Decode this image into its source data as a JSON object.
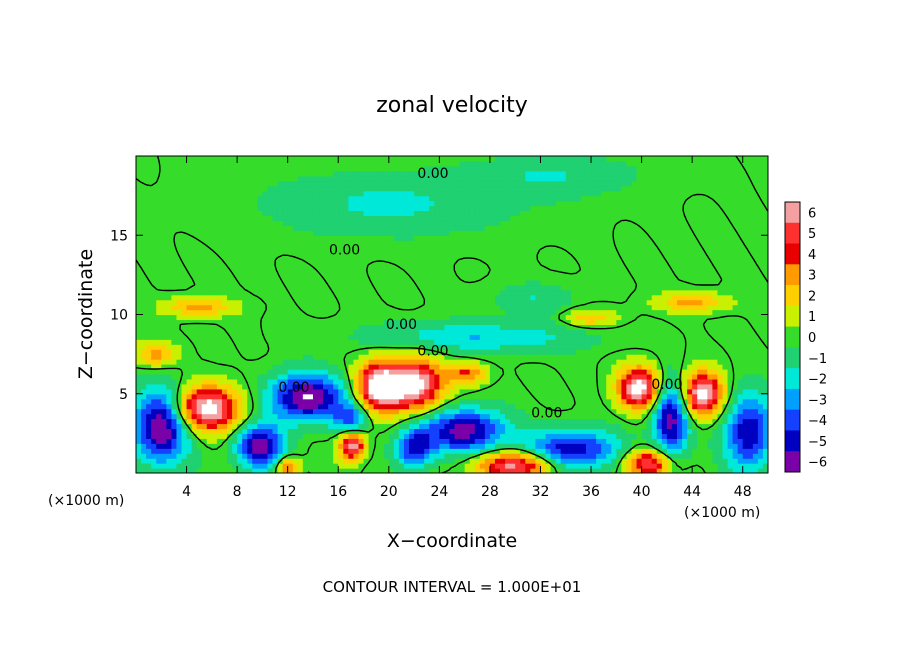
{
  "chart_data": {
    "type": "heatmap",
    "title": "zonal velocity",
    "xlabel": "X−coordinate",
    "ylabel": "Z−coordinate",
    "x_unit_left": "(×1000 m)",
    "x_unit_right": "(×1000 m)",
    "footer": "CONTOUR INTERVAL = 1.000E+01",
    "xlim": [
      0,
      50
    ],
    "ylim": [
      0,
      20
    ],
    "x_ticks": [
      4,
      8,
      12,
      16,
      20,
      24,
      28,
      32,
      36,
      40,
      44,
      48
    ],
    "x_tick_labels": [
      "4",
      "8",
      "12",
      "16",
      "20",
      "24",
      "28",
      "32",
      "36",
      "40",
      "44",
      "48"
    ],
    "y_ticks": [
      5,
      10,
      15
    ],
    "y_tick_labels": [
      "5",
      "10",
      "15"
    ],
    "colorbar": {
      "levels": [
        6,
        5,
        4,
        3,
        2,
        1,
        0,
        -1,
        -2,
        -3,
        -4,
        -5,
        -6
      ],
      "labels": [
        "6",
        "5",
        "4",
        "3",
        "2",
        "1",
        "0",
        "−1",
        "−2",
        "−3",
        "−4",
        "−5",
        "−6"
      ],
      "colors": [
        "#f4a0a0",
        "#ff3030",
        "#e80000",
        "#ff9a00",
        "#ffd000",
        "#c8f000",
        "#36dc2a",
        "#1fd170",
        "#00e8d8",
        "#00a0ff",
        "#1440ff",
        "#0000c0",
        "#7a00a8"
      ]
    },
    "contour_label": "0.00",
    "contour_labels": [
      {
        "x": 23.5,
        "z": 18.6,
        "text": "0.00"
      },
      {
        "x": 16.5,
        "z": 13.8,
        "text": "0.00"
      },
      {
        "x": 21.0,
        "z": 9.1,
        "text": "0.00"
      },
      {
        "x": 23.5,
        "z": 7.4,
        "text": "0.00"
      },
      {
        "x": 12.5,
        "z": 5.1,
        "text": "0.00"
      },
      {
        "x": 32.5,
        "z": 3.5,
        "text": "0.00"
      },
      {
        "x": 42.0,
        "z": 5.3,
        "text": "0.00"
      }
    ],
    "features": [
      {
        "x": 5.6,
        "z": 4.1,
        "v": 6.0,
        "rx": 2.5,
        "rz": 1.3
      },
      {
        "x": 19.2,
        "z": 5.5,
        "v": 6.0,
        "rx": 1.6,
        "rz": 1.4
      },
      {
        "x": 22.0,
        "z": 5.6,
        "v": 6.0,
        "rx": 2.1,
        "rz": 1.5
      },
      {
        "x": 39.8,
        "z": 5.4,
        "v": 6.0,
        "rx": 1.5,
        "rz": 1.2
      },
      {
        "x": 44.8,
        "z": 5.0,
        "v": 6.0,
        "rx": 1.5,
        "rz": 1.3
      },
      {
        "x": 17.1,
        "z": 1.7,
        "v": 5.5,
        "rx": 0.9,
        "rz": 0.8
      },
      {
        "x": 30.0,
        "z": 0.5,
        "v": 5.0,
        "rx": 3.0,
        "rz": 0.8
      },
      {
        "x": 40.5,
        "z": 0.6,
        "v": 5.0,
        "rx": 1.6,
        "rz": 0.8
      },
      {
        "x": 26.2,
        "z": 6.3,
        "v": 3.0,
        "rx": 1.4,
        "rz": 0.6
      },
      {
        "x": 12.0,
        "z": 0.4,
        "v": 4.0,
        "rx": 0.8,
        "rz": 0.6
      },
      {
        "x": 2.0,
        "z": 3.0,
        "v": -5.5,
        "rx": 2.0,
        "rz": 2.2
      },
      {
        "x": 13.5,
        "z": 4.8,
        "v": -5.5,
        "rx": 2.8,
        "rz": 1.4
      },
      {
        "x": 9.8,
        "z": 1.7,
        "v": -5.0,
        "rx": 1.8,
        "rz": 1.3
      },
      {
        "x": 26.0,
        "z": 2.7,
        "v": -5.0,
        "rx": 3.0,
        "rz": 1.3
      },
      {
        "x": 34.5,
        "z": 1.5,
        "v": -4.5,
        "rx": 3.2,
        "rz": 1.2
      },
      {
        "x": 42.3,
        "z": 3.4,
        "v": -5.0,
        "rx": 1.3,
        "rz": 2.2
      },
      {
        "x": 48.5,
        "z": 2.6,
        "v": -4.5,
        "rx": 1.8,
        "rz": 2.2
      },
      {
        "x": 22.0,
        "z": 1.6,
        "v": -4.0,
        "rx": 1.4,
        "rz": 1.2
      },
      {
        "x": 17.0,
        "z": 3.5,
        "v": -3.0,
        "rx": 1.2,
        "rz": 0.8
      },
      {
        "x": 27.0,
        "z": 8.6,
        "v": -2.0,
        "rx": 8.0,
        "rz": 0.9
      },
      {
        "x": 20.0,
        "z": 17.0,
        "v": -1.4,
        "rx": 9.0,
        "rz": 1.8
      },
      {
        "x": 33.0,
        "z": 18.8,
        "v": -1.2,
        "rx": 6.0,
        "rz": 1.2
      },
      {
        "x": 31.5,
        "z": 11.0,
        "v": -1.2,
        "rx": 3.0,
        "rz": 0.9
      },
      {
        "x": 5.0,
        "z": 10.5,
        "v": 2.5,
        "rx": 2.5,
        "rz": 0.5
      },
      {
        "x": 44.0,
        "z": 10.8,
        "v": 2.5,
        "rx": 2.5,
        "rz": 0.5
      },
      {
        "x": 36.0,
        "z": 9.8,
        "v": 2.0,
        "rx": 2.0,
        "rz": 0.5
      },
      {
        "x": 1.5,
        "z": 7.5,
        "v": 2.5,
        "rx": 1.5,
        "rz": 0.7
      }
    ]
  }
}
